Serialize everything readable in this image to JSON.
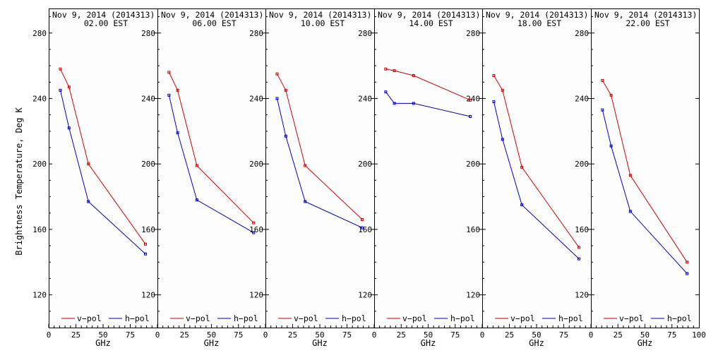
{
  "ylabel": "Brightness Temperature, Deg K",
  "xlabel": "GHz",
  "legend": {
    "v_label": "v−pol",
    "h_label": "h−pol"
  },
  "colors": {
    "v": "#d00000",
    "h": "#0000c8",
    "axis": "#000000",
    "background": "#fdfdfd"
  },
  "chart_data": [
    {
      "type": "line",
      "title": "Nov  9, 2014 (2014313)",
      "subtitle": "02.00 EST",
      "x": [
        10.7,
        18.7,
        36.5,
        89.0
      ],
      "series": [
        {
          "name": "v-pol",
          "values": [
            258,
            247,
            200,
            151
          ]
        },
        {
          "name": "h-pol",
          "values": [
            245,
            222,
            177,
            145
          ]
        }
      ],
      "xlabel": "GHz",
      "ylabel": "Brightness Temperature, Deg K",
      "xlim": [
        0,
        100
      ],
      "ylim": [
        100,
        295
      ],
      "xticks": [
        0,
        25,
        50,
        75
      ],
      "yticks": [
        120,
        160,
        200,
        240,
        280
      ]
    },
    {
      "type": "line",
      "title": "Nov  9, 2014 (2014313)",
      "subtitle": "06.00 EST",
      "x": [
        10.7,
        18.7,
        36.5,
        89.0
      ],
      "series": [
        {
          "name": "v-pol",
          "values": [
            256,
            245,
            199,
            164
          ]
        },
        {
          "name": "h-pol",
          "values": [
            242,
            219,
            178,
            158
          ]
        }
      ],
      "xlabel": "GHz",
      "ylabel": "Brightness Temperature, Deg K",
      "xlim": [
        0,
        100
      ],
      "ylim": [
        100,
        295
      ],
      "xticks": [
        0,
        25,
        50,
        75
      ],
      "yticks": [
        120,
        160,
        200,
        240,
        280
      ]
    },
    {
      "type": "line",
      "title": "Nov  9, 2014 (2014313)",
      "subtitle": "10.00 EST",
      "x": [
        10.7,
        18.7,
        36.5,
        89.0
      ],
      "series": [
        {
          "name": "v-pol",
          "values": [
            255,
            245,
            199,
            166
          ]
        },
        {
          "name": "h-pol",
          "values": [
            240,
            217,
            177,
            161
          ]
        }
      ],
      "xlabel": "GHz",
      "ylabel": "Brightness Temperature, Deg K",
      "xlim": [
        0,
        100
      ],
      "ylim": [
        100,
        295
      ],
      "xticks": [
        0,
        25,
        50,
        75
      ],
      "yticks": [
        120,
        160,
        200,
        240,
        280
      ]
    },
    {
      "type": "line",
      "title": "Nov  9, 2014 (2014313)",
      "subtitle": "14.00 EST",
      "x": [
        10.7,
        18.7,
        36.5,
        89.0
      ],
      "series": [
        {
          "name": "v-pol",
          "values": [
            258,
            257,
            254,
            239
          ]
        },
        {
          "name": "h-pol",
          "values": [
            244,
            237,
            237,
            229
          ]
        }
      ],
      "xlabel": "GHz",
      "ylabel": "Brightness Temperature, Deg K",
      "xlim": [
        0,
        100
      ],
      "ylim": [
        100,
        295
      ],
      "xticks": [
        0,
        25,
        50,
        75
      ],
      "yticks": [
        120,
        160,
        200,
        240,
        280
      ]
    },
    {
      "type": "line",
      "title": "Nov  9, 2014 (2014313)",
      "subtitle": "18.00 EST",
      "x": [
        10.7,
        18.7,
        36.5,
        89.0
      ],
      "series": [
        {
          "name": "v-pol",
          "values": [
            254,
            245,
            198,
            149
          ]
        },
        {
          "name": "h-pol",
          "values": [
            238,
            215,
            175,
            142
          ]
        }
      ],
      "xlabel": "GHz",
      "ylabel": "Brightness Temperature, Deg K",
      "xlim": [
        0,
        100
      ],
      "ylim": [
        100,
        295
      ],
      "xticks": [
        0,
        25,
        50,
        75
      ],
      "yticks": [
        120,
        160,
        200,
        240,
        280
      ]
    },
    {
      "type": "line",
      "title": "Nov  9, 2014 (2014313)",
      "subtitle": "22.00 EST",
      "x": [
        10.7,
        18.7,
        36.5,
        89.0
      ],
      "series": [
        {
          "name": "v-pol",
          "values": [
            251,
            242,
            193,
            140
          ]
        },
        {
          "name": "h-pol",
          "values": [
            233,
            211,
            171,
            133
          ]
        }
      ],
      "xlabel": "GHz",
      "ylabel": "Brightness Temperature, Deg K",
      "xlim": [
        0,
        100
      ],
      "ylim": [
        100,
        295
      ],
      "xticks": [
        0,
        25,
        50,
        75
      ],
      "yticks": [
        120,
        160,
        200,
        240,
        280
      ]
    }
  ]
}
